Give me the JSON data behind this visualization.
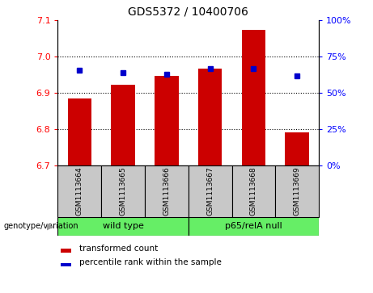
{
  "title": "GDS5372 / 10400706",
  "samples": [
    "GSM1113664",
    "GSM1113665",
    "GSM1113666",
    "GSM1113667",
    "GSM1113668",
    "GSM1113669"
  ],
  "bar_values": [
    6.885,
    6.923,
    6.948,
    6.968,
    7.075,
    6.792
  ],
  "percentile_values": [
    66,
    64,
    63,
    67,
    67,
    62
  ],
  "y_min": 6.7,
  "y_max": 7.1,
  "y_ticks": [
    6.7,
    6.8,
    6.9,
    7.0,
    7.1
  ],
  "right_y_ticks": [
    0,
    25,
    50,
    75,
    100
  ],
  "bar_color": "#cc0000",
  "dot_color": "#0000cc",
  "grid_values": [
    6.8,
    6.9,
    7.0
  ],
  "group_bg_color": "#c8c8c8",
  "green_color": "#66ee66",
  "legend_bar_label": "transformed count",
  "legend_dot_label": "percentile rank within the sample",
  "genotype_label": "genotype/variation"
}
